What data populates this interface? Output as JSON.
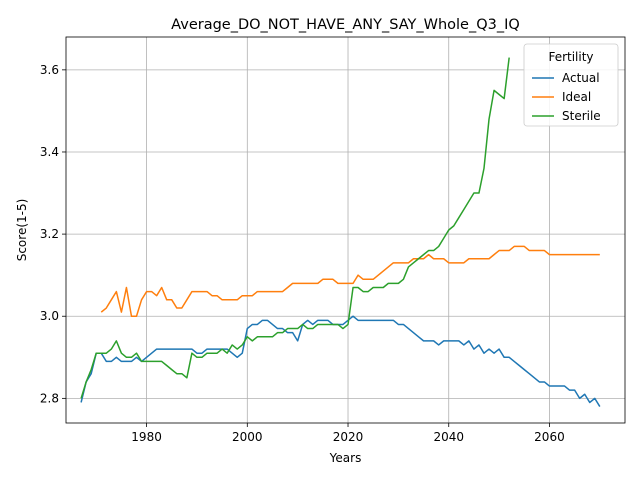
{
  "chart_data": {
    "type": "line",
    "title": "Average_DO_NOT_HAVE_ANY_SAY_Whole_Q3_IQ",
    "xlabel": "Years",
    "ylabel": "Score(1-5)",
    "xlim": [
      1964,
      2075
    ],
    "ylim": [
      2.74,
      3.68
    ],
    "xticks": [
      1980,
      2000,
      2020,
      2040,
      2060
    ],
    "xtick_labels": [
      "1980",
      "2000",
      "2020",
      "2040",
      "2060"
    ],
    "yticks": [
      2.8,
      3.0,
      3.2,
      3.4,
      3.6
    ],
    "ytick_labels": [
      "2.8",
      "3.0",
      "3.2",
      "3.4",
      "3.6"
    ],
    "grid": true,
    "legend": {
      "title": "Fertility",
      "position": "top-right"
    },
    "series": [
      {
        "name": "Actual",
        "color": "#1f77b4",
        "points": [
          [
            1967,
            2.79
          ],
          [
            1968,
            2.84
          ],
          [
            1969,
            2.86
          ],
          [
            1970,
            2.91
          ],
          [
            1971,
            2.91
          ],
          [
            1972,
            2.89
          ],
          [
            1973,
            2.89
          ],
          [
            1974,
            2.9
          ],
          [
            1975,
            2.89
          ],
          [
            1976,
            2.89
          ],
          [
            1977,
            2.89
          ],
          [
            1978,
            2.9
          ],
          [
            1979,
            2.89
          ],
          [
            1980,
            2.9
          ],
          [
            1981,
            2.91
          ],
          [
            1982,
            2.92
          ],
          [
            1983,
            2.92
          ],
          [
            1984,
            2.92
          ],
          [
            1985,
            2.92
          ],
          [
            1986,
            2.92
          ],
          [
            1987,
            2.92
          ],
          [
            1988,
            2.92
          ],
          [
            1989,
            2.92
          ],
          [
            1990,
            2.91
          ],
          [
            1991,
            2.91
          ],
          [
            1992,
            2.92
          ],
          [
            1993,
            2.92
          ],
          [
            1994,
            2.92
          ],
          [
            1995,
            2.92
          ],
          [
            1996,
            2.92
          ],
          [
            1997,
            2.91
          ],
          [
            1998,
            2.9
          ],
          [
            1999,
            2.91
          ],
          [
            2000,
            2.97
          ],
          [
            2001,
            2.98
          ],
          [
            2002,
            2.98
          ],
          [
            2003,
            2.99
          ],
          [
            2004,
            2.99
          ],
          [
            2005,
            2.98
          ],
          [
            2006,
            2.97
          ],
          [
            2007,
            2.97
          ],
          [
            2008,
            2.96
          ],
          [
            2009,
            2.96
          ],
          [
            2010,
            2.94
          ],
          [
            2011,
            2.98
          ],
          [
            2012,
            2.99
          ],
          [
            2013,
            2.98
          ],
          [
            2014,
            2.99
          ],
          [
            2015,
            2.99
          ],
          [
            2016,
            2.99
          ],
          [
            2017,
            2.98
          ],
          [
            2018,
            2.98
          ],
          [
            2019,
            2.98
          ],
          [
            2020,
            2.99
          ],
          [
            2021,
            3.0
          ],
          [
            2022,
            2.99
          ],
          [
            2023,
            2.99
          ],
          [
            2024,
            2.99
          ],
          [
            2025,
            2.99
          ],
          [
            2026,
            2.99
          ],
          [
            2027,
            2.99
          ],
          [
            2028,
            2.99
          ],
          [
            2029,
            2.99
          ],
          [
            2030,
            2.98
          ],
          [
            2031,
            2.98
          ],
          [
            2032,
            2.97
          ],
          [
            2033,
            2.96
          ],
          [
            2034,
            2.95
          ],
          [
            2035,
            2.94
          ],
          [
            2036,
            2.94
          ],
          [
            2037,
            2.94
          ],
          [
            2038,
            2.93
          ],
          [
            2039,
            2.94
          ],
          [
            2040,
            2.94
          ],
          [
            2041,
            2.94
          ],
          [
            2042,
            2.94
          ],
          [
            2043,
            2.93
          ],
          [
            2044,
            2.94
          ],
          [
            2045,
            2.92
          ],
          [
            2046,
            2.93
          ],
          [
            2047,
            2.91
          ],
          [
            2048,
            2.92
          ],
          [
            2049,
            2.91
          ],
          [
            2050,
            2.92
          ],
          [
            2051,
            2.9
          ],
          [
            2052,
            2.9
          ],
          [
            2053,
            2.89
          ],
          [
            2054,
            2.88
          ],
          [
            2055,
            2.87
          ],
          [
            2056,
            2.86
          ],
          [
            2057,
            2.85
          ],
          [
            2058,
            2.84
          ],
          [
            2059,
            2.84
          ],
          [
            2060,
            2.83
          ],
          [
            2061,
            2.83
          ],
          [
            2062,
            2.83
          ],
          [
            2063,
            2.83
          ],
          [
            2064,
            2.82
          ],
          [
            2065,
            2.82
          ],
          [
            2066,
            2.8
          ],
          [
            2067,
            2.81
          ],
          [
            2068,
            2.79
          ],
          [
            2069,
            2.8
          ],
          [
            2070,
            2.78
          ]
        ]
      },
      {
        "name": "Ideal",
        "color": "#ff7f0e",
        "points": [
          [
            1971,
            3.01
          ],
          [
            1972,
            3.02
          ],
          [
            1973,
            3.04
          ],
          [
            1974,
            3.06
          ],
          [
            1975,
            3.01
          ],
          [
            1976,
            3.07
          ],
          [
            1977,
            3.0
          ],
          [
            1978,
            3.0
          ],
          [
            1979,
            3.04
          ],
          [
            1980,
            3.06
          ],
          [
            1981,
            3.06
          ],
          [
            1982,
            3.05
          ],
          [
            1983,
            3.07
          ],
          [
            1984,
            3.04
          ],
          [
            1985,
            3.04
          ],
          [
            1986,
            3.02
          ],
          [
            1987,
            3.02
          ],
          [
            1988,
            3.04
          ],
          [
            1989,
            3.06
          ],
          [
            1990,
            3.06
          ],
          [
            1991,
            3.06
          ],
          [
            1992,
            3.06
          ],
          [
            1993,
            3.05
          ],
          [
            1994,
            3.05
          ],
          [
            1995,
            3.04
          ],
          [
            1996,
            3.04
          ],
          [
            1997,
            3.04
          ],
          [
            1998,
            3.04
          ],
          [
            1999,
            3.05
          ],
          [
            2000,
            3.05
          ],
          [
            2001,
            3.05
          ],
          [
            2002,
            3.06
          ],
          [
            2003,
            3.06
          ],
          [
            2004,
            3.06
          ],
          [
            2005,
            3.06
          ],
          [
            2006,
            3.06
          ],
          [
            2007,
            3.06
          ],
          [
            2008,
            3.07
          ],
          [
            2009,
            3.08
          ],
          [
            2010,
            3.08
          ],
          [
            2011,
            3.08
          ],
          [
            2012,
            3.08
          ],
          [
            2013,
            3.08
          ],
          [
            2014,
            3.08
          ],
          [
            2015,
            3.09
          ],
          [
            2016,
            3.09
          ],
          [
            2017,
            3.09
          ],
          [
            2018,
            3.08
          ],
          [
            2019,
            3.08
          ],
          [
            2020,
            3.08
          ],
          [
            2021,
            3.08
          ],
          [
            2022,
            3.1
          ],
          [
            2023,
            3.09
          ],
          [
            2024,
            3.09
          ],
          [
            2025,
            3.09
          ],
          [
            2026,
            3.1
          ],
          [
            2027,
            3.11
          ],
          [
            2028,
            3.12
          ],
          [
            2029,
            3.13
          ],
          [
            2030,
            3.13
          ],
          [
            2031,
            3.13
          ],
          [
            2032,
            3.13
          ],
          [
            2033,
            3.14
          ],
          [
            2034,
            3.14
          ],
          [
            2035,
            3.14
          ],
          [
            2036,
            3.15
          ],
          [
            2037,
            3.14
          ],
          [
            2038,
            3.14
          ],
          [
            2039,
            3.14
          ],
          [
            2040,
            3.13
          ],
          [
            2041,
            3.13
          ],
          [
            2042,
            3.13
          ],
          [
            2043,
            3.13
          ],
          [
            2044,
            3.14
          ],
          [
            2045,
            3.14
          ],
          [
            2046,
            3.14
          ],
          [
            2047,
            3.14
          ],
          [
            2048,
            3.14
          ],
          [
            2049,
            3.15
          ],
          [
            2050,
            3.16
          ],
          [
            2051,
            3.16
          ],
          [
            2052,
            3.16
          ],
          [
            2053,
            3.17
          ],
          [
            2054,
            3.17
          ],
          [
            2055,
            3.17
          ],
          [
            2056,
            3.16
          ],
          [
            2057,
            3.16
          ],
          [
            2058,
            3.16
          ],
          [
            2059,
            3.16
          ],
          [
            2060,
            3.15
          ],
          [
            2061,
            3.15
          ],
          [
            2062,
            3.15
          ],
          [
            2063,
            3.15
          ],
          [
            2064,
            3.15
          ],
          [
            2065,
            3.15
          ],
          [
            2066,
            3.15
          ],
          [
            2067,
            3.15
          ],
          [
            2068,
            3.15
          ],
          [
            2069,
            3.15
          ],
          [
            2070,
            3.15
          ]
        ]
      },
      {
        "name": "Sterile",
        "color": "#2ca02c",
        "points": [
          [
            1967,
            2.8
          ],
          [
            1968,
            2.84
          ],
          [
            1969,
            2.87
          ],
          [
            1970,
            2.91
          ],
          [
            1971,
            2.91
          ],
          [
            1972,
            2.91
          ],
          [
            1973,
            2.92
          ],
          [
            1974,
            2.94
          ],
          [
            1975,
            2.91
          ],
          [
            1976,
            2.9
          ],
          [
            1977,
            2.9
          ],
          [
            1978,
            2.91
          ],
          [
            1979,
            2.89
          ],
          [
            1980,
            2.89
          ],
          [
            1981,
            2.89
          ],
          [
            1982,
            2.89
          ],
          [
            1983,
            2.89
          ],
          [
            1984,
            2.88
          ],
          [
            1985,
            2.87
          ],
          [
            1986,
            2.86
          ],
          [
            1987,
            2.86
          ],
          [
            1988,
            2.85
          ],
          [
            1989,
            2.91
          ],
          [
            1990,
            2.9
          ],
          [
            1991,
            2.9
          ],
          [
            1992,
            2.91
          ],
          [
            1993,
            2.91
          ],
          [
            1994,
            2.91
          ],
          [
            1995,
            2.92
          ],
          [
            1996,
            2.91
          ],
          [
            1997,
            2.93
          ],
          [
            1998,
            2.92
          ],
          [
            1999,
            2.93
          ],
          [
            2000,
            2.95
          ],
          [
            2001,
            2.94
          ],
          [
            2002,
            2.95
          ],
          [
            2003,
            2.95
          ],
          [
            2004,
            2.95
          ],
          [
            2005,
            2.95
          ],
          [
            2006,
            2.96
          ],
          [
            2007,
            2.96
          ],
          [
            2008,
            2.97
          ],
          [
            2009,
            2.97
          ],
          [
            2010,
            2.97
          ],
          [
            2011,
            2.98
          ],
          [
            2012,
            2.97
          ],
          [
            2013,
            2.97
          ],
          [
            2014,
            2.98
          ],
          [
            2015,
            2.98
          ],
          [
            2016,
            2.98
          ],
          [
            2017,
            2.98
          ],
          [
            2018,
            2.98
          ],
          [
            2019,
            2.97
          ],
          [
            2020,
            2.98
          ],
          [
            2021,
            3.07
          ],
          [
            2022,
            3.07
          ],
          [
            2023,
            3.06
          ],
          [
            2024,
            3.06
          ],
          [
            2025,
            3.07
          ],
          [
            2026,
            3.07
          ],
          [
            2027,
            3.07
          ],
          [
            2028,
            3.08
          ],
          [
            2029,
            3.08
          ],
          [
            2030,
            3.08
          ],
          [
            2031,
            3.09
          ],
          [
            2032,
            3.12
          ],
          [
            2033,
            3.13
          ],
          [
            2034,
            3.14
          ],
          [
            2035,
            3.15
          ],
          [
            2036,
            3.16
          ],
          [
            2037,
            3.16
          ],
          [
            2038,
            3.17
          ],
          [
            2039,
            3.19
          ],
          [
            2040,
            3.21
          ],
          [
            2041,
            3.22
          ],
          [
            2042,
            3.24
          ],
          [
            2043,
            3.26
          ],
          [
            2044,
            3.28
          ],
          [
            2045,
            3.3
          ],
          [
            2046,
            3.3
          ],
          [
            2047,
            3.36
          ],
          [
            2048,
            3.48
          ],
          [
            2049,
            3.55
          ],
          [
            2050,
            3.54
          ],
          [
            2051,
            3.53
          ],
          [
            2052,
            3.63
          ]
        ]
      }
    ]
  }
}
